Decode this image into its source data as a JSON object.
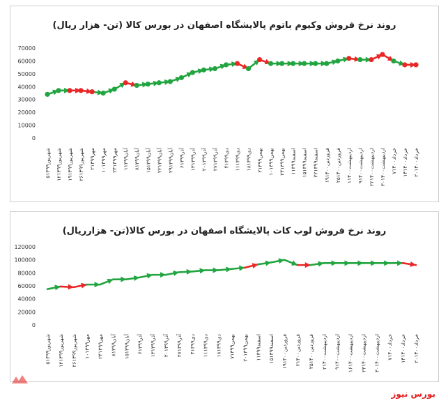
{
  "colors": {
    "line": "#22a540",
    "point_green": "#22a540",
    "point_red": "#e82727",
    "brand": "#e41c1c",
    "axis_text": "#333333"
  },
  "brand_label": "بورس نیوز",
  "chart_data": [
    {
      "type": "line",
      "title": "روند نرخ فروش وکیوم باتوم پالایشگاه اصفهان در بورس کالا (تن- هزار ریال)",
      "categories": [
        "۵شهریور۱۳۹۹",
        "۱۲شهریور۱۳۹۹",
        "۱۹شهریور۱۳۹۹",
        "۲۶شهریور۱۳۹۹",
        "۲مهر۱۳۹۹",
        "۱۰مهر۱۳۹۹",
        "۲۴مهر۱۳۹۹",
        "۱آبان۱۳۹۹",
        "۸آبان۱۳۹۹",
        "۱۵آبان۱۳۹۹",
        "۲۲آبان۱۳۹۹",
        "۲۹آبان۱۳۹۹",
        "۶آذر۱۳۹۹",
        "۱۳آذر۱۳۹۹",
        "۲۰آذر۱۳۹۹",
        "۲۷آذر۱۳۹۹",
        "۴دی۱۳۹۹",
        "۱۱دی۱۳۹۹",
        "۱۸دی۱۳۹۹",
        "۲بهمن۱۳۹۹",
        "۱۰بهمن۱۳۹۹",
        "۲۴بهمن۱۳۹۹",
        "۱اسفند۱۳۹۹",
        "۱۵اسفند۱۳۹۹",
        "۲۲اسفند۱۳۹۹",
        "۱۹فروردین۱۴۰۰",
        "۲۵فروردین۱۴۰۰",
        "۱اردیبهشت۱۴۰۰",
        "۹اردیبهشت۱۴۰۰",
        "۲۲اردیبهشت۱۴۰۰",
        "۳۰اردیبهشت۱۴۰۰",
        "۷خرداد۱۴۰۰",
        "۱۴خرداد۱۴۰۰",
        "۲۰خرداد۱۴۰۰"
      ],
      "values": [
        34000,
        37000,
        37000,
        37000,
        36000,
        35000,
        38000,
        43000,
        41000,
        42000,
        43000,
        44000,
        47000,
        51000,
        53000,
        54000,
        57000,
        58000,
        54000,
        61000,
        58000,
        58000,
        58000,
        58000,
        58000,
        58000,
        60000,
        62000,
        61000,
        61000,
        65000,
        60000,
        57000,
        57000
      ],
      "marker_colors": [
        "green",
        "green",
        "red",
        "red",
        "red",
        "green",
        "green",
        "red",
        "green",
        "green",
        "green",
        "green",
        "green",
        "green",
        "green",
        "green",
        "green",
        "red",
        "green",
        "red",
        "green",
        "green",
        "green",
        "green",
        "green",
        "green",
        "green",
        "red",
        "green",
        "red",
        "red",
        "green",
        "red",
        "red"
      ],
      "arrow_colors": [
        "green",
        "green",
        "red",
        "red",
        "green",
        "green",
        "green",
        "red",
        "green",
        "green",
        "green",
        "green",
        "green",
        "green",
        "green",
        "green",
        "green",
        "red",
        "green",
        "red",
        "green",
        "green",
        "green",
        "green",
        "green",
        "green",
        "green",
        "red",
        "green",
        "red",
        "red",
        "green",
        "red"
      ],
      "y_ticks": [
        "0",
        "10000",
        "20000",
        "30000",
        "40000",
        "50000",
        "60000",
        "70000"
      ],
      "ylim": [
        0,
        70000
      ]
    },
    {
      "type": "line",
      "title": "روند نرخ فروش لوب کات پالایشگاه اصفهان در بورس کالا(تن- هزارریال)",
      "categories": [
        "۵شهریور۱۳۹۹",
        "۱۲شهریور۱۳۹۹",
        "۲۶شهریور۱۳۹۹",
        "۱۰مهر۱۳۹۹",
        "۲۴مهر۱۳۹۹",
        "۸آبان۱۳۹۹",
        "۱۵آبان۱۳۹۹",
        "۶آذر۱۳۹۹",
        "۱۳آذر۱۳۹۹",
        "۲۰آذر۱۳۹۹",
        "۲۷آذر۱۳۹۹",
        "۴دی۱۳۹۹",
        "۱۱دی۱۳۹۹",
        "۱۸دی۱۳۹۹",
        "۷بهمن۱۳۹۹",
        "۲۰بهمن۱۳۹۹",
        "۱اسفند۱۳۹۹",
        "۱۵اسفند۱۳۹۹",
        "۱۹فروردین۱۴۰۰",
        "۲فروردین۱۴۰۰",
        "۲۵فروردین۱۴۰۰",
        "۲اردیبهشت۱۴۰۰",
        "۹اردیبهشت۱۴۰۰",
        "۱۶اردیبهشت۱۴۰۰",
        "۲۳اردیبهشت۱۴۰۰",
        "۳۰اردیبهشت۱۴۰۰",
        "۷خرداد۱۴۰۰",
        "۱۴خرداد۱۴۰۰",
        "۲۰خرداد۱۴۰۰"
      ],
      "values": [
        55000,
        59000,
        58000,
        62000,
        62000,
        70000,
        70000,
        73000,
        77000,
        77000,
        81000,
        82000,
        84000,
        84000,
        86000,
        88000,
        93000,
        96000,
        100000,
        92000,
        92000,
        95000,
        95000,
        95000,
        95000,
        95000,
        95000,
        95000,
        92000
      ],
      "arrow_colors": [
        "green",
        "red",
        "red",
        "green",
        "green",
        "green",
        "green",
        "green",
        "green",
        "green",
        "green",
        "green",
        "green",
        "green",
        "green",
        "red",
        "green",
        "green",
        "green",
        "red",
        "green",
        "green",
        "green",
        "green",
        "green",
        "green",
        "green",
        "red"
      ],
      "y_ticks": [
        "0",
        "20000",
        "40000",
        "60000",
        "80000",
        "100000",
        "120000"
      ],
      "ylim": [
        0,
        120000
      ]
    }
  ]
}
